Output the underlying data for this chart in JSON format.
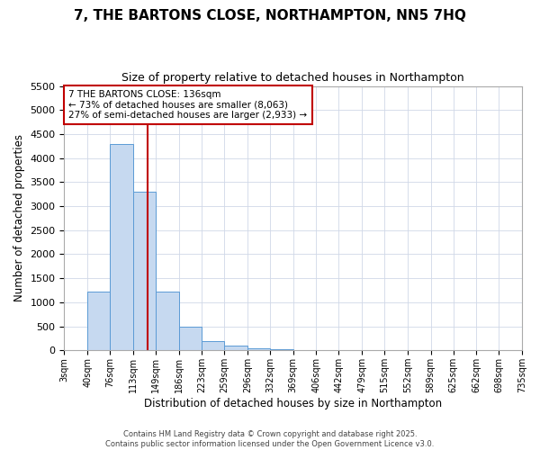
{
  "title_line1": "7, THE BARTONS CLOSE, NORTHAMPTON, NN5 7HQ",
  "title_line2": "Size of property relative to detached houses in Northampton",
  "xlabel": "Distribution of detached houses by size in Northampton",
  "ylabel": "Number of detached properties",
  "annotation_title": "7 THE BARTONS CLOSE: 136sqm",
  "annotation_line2": "← 73% of detached houses are smaller (8,063)",
  "annotation_line3": "27% of semi-detached houses are larger (2,933) →",
  "property_size": 136,
  "bar_edges": [
    3,
    40,
    76,
    113,
    149,
    186,
    223,
    259,
    296,
    332,
    369,
    406,
    442,
    479,
    515,
    552,
    589,
    625,
    662,
    698,
    735
  ],
  "bar_values": [
    0,
    1230,
    4300,
    3300,
    1230,
    500,
    200,
    100,
    50,
    20,
    10,
    5,
    3,
    2,
    1,
    1,
    0,
    0,
    0,
    0
  ],
  "bar_color": "#c6d9f0",
  "bar_edge_color": "#5b9bd5",
  "vline_color": "#c00000",
  "annotation_box_color": "#c00000",
  "ylim": [
    0,
    5500
  ],
  "yticks": [
    0,
    500,
    1000,
    1500,
    2000,
    2500,
    3000,
    3500,
    4000,
    4500,
    5000,
    5500
  ],
  "grid_color": "#d0d8e8",
  "background_color": "#ffffff",
  "footer_line1": "Contains HM Land Registry data © Crown copyright and database right 2025.",
  "footer_line2": "Contains public sector information licensed under the Open Government Licence v3.0."
}
